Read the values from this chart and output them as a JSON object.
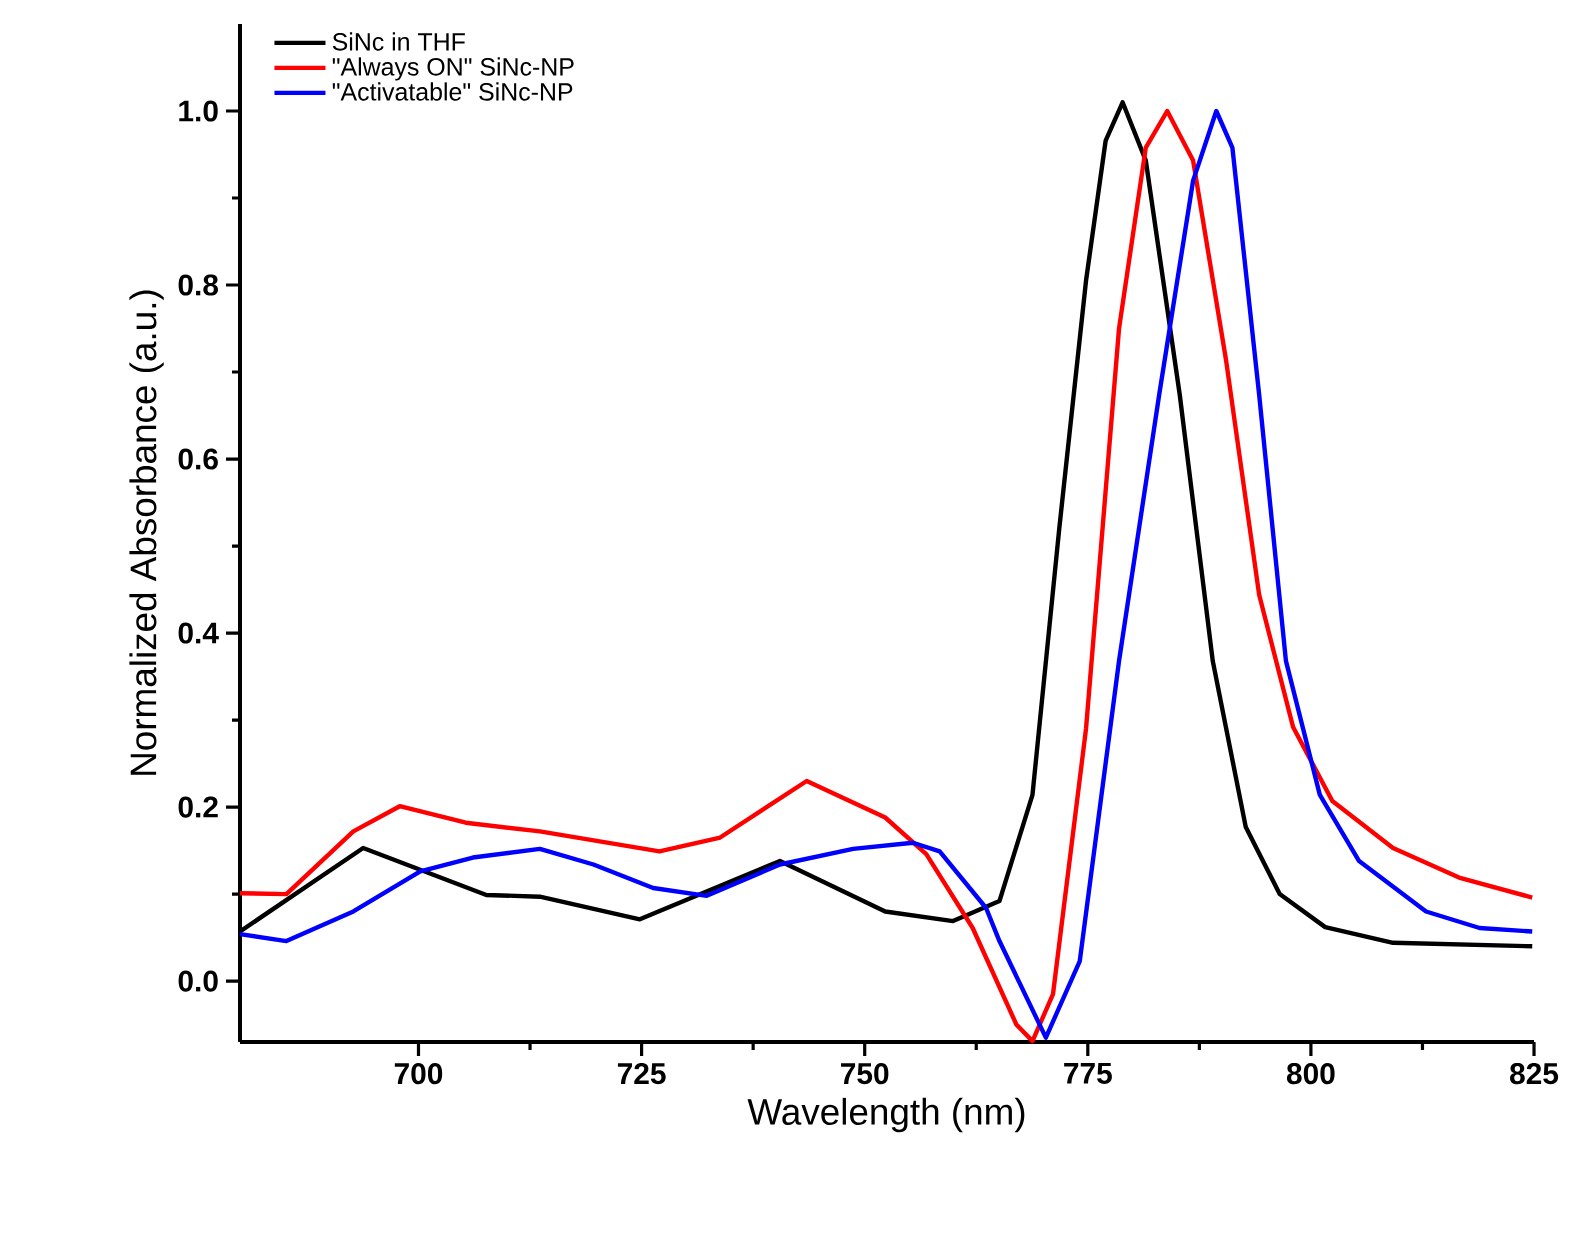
{
  "chart_data": {
    "type": "line",
    "xlabel": "Wavelength (nm)",
    "ylabel": "Normalized Absorbance (a.u.)",
    "xlim": [
      680,
      825
    ],
    "ylim": [
      -0.07,
      1.1
    ],
    "xticks": [
      700,
      725,
      750,
      775,
      800,
      825
    ],
    "yticks": [
      {
        "value": 0,
        "label": "0.0"
      },
      {
        "value": 0.2,
        "label": "0.2"
      },
      {
        "value": 0.4,
        "label": "0.4"
      },
      {
        "value": 0.6,
        "label": "0.6"
      },
      {
        "value": 0.8,
        "label": "0.8"
      },
      {
        "value": 1.0,
        "label": "1.0"
      }
    ],
    "legend": "top left",
    "grid": false,
    "series": [
      {
        "name": "SiNc in THF",
        "color": "#000000",
        "x": [
          680,
          693.8,
          707.6,
          713.6,
          724.8,
          740.5,
          752.3,
          759.9,
          765.1,
          768.8,
          771.8,
          774.8,
          777.0,
          778.9,
          781.5,
          785.3,
          789.0,
          792.7,
          796.5,
          801.6,
          809.2,
          824.8
        ],
        "values": [
          0.057,
          0.153,
          0.099,
          0.097,
          0.071,
          0.138,
          0.08,
          0.069,
          0.092,
          0.214,
          0.52,
          0.805,
          0.966,
          1.01,
          0.943,
          0.674,
          0.368,
          0.177,
          0.1,
          0.062,
          0.044,
          0.04
        ]
      },
      {
        "name": "\"Always ON\" SiNc-NP",
        "color": "#ff0000",
        "x": [
          680,
          685.2,
          692.7,
          697.9,
          705.3,
          713.6,
          727.0,
          733.8,
          743.5,
          752.3,
          756.9,
          762.1,
          767.0,
          768.8,
          771.1,
          774.8,
          778.5,
          781.5,
          783.9,
          786.8,
          790.5,
          794.2,
          798.0,
          802.4,
          809.2,
          816.6,
          824.8
        ],
        "values": [
          0.101,
          0.1,
          0.172,
          0.201,
          0.182,
          0.172,
          0.149,
          0.165,
          0.23,
          0.188,
          0.146,
          0.061,
          -0.05,
          -0.069,
          -0.015,
          0.29,
          0.75,
          0.958,
          1.0,
          0.943,
          0.713,
          0.444,
          0.292,
          0.207,
          0.153,
          0.119,
          0.096
        ]
      },
      {
        "name": "\"Activatable\" SiNc-NP",
        "color": "#0000ff",
        "x": [
          680,
          685.2,
          692.7,
          700.2,
          706.1,
          713.6,
          719.6,
          726.3,
          732.3,
          740.5,
          748.7,
          755.4,
          758.4,
          763.6,
          765.1,
          770.3,
          774.1,
          778.5,
          783.0,
          786.8,
          789.4,
          791.2,
          794.2,
          797.2,
          801.0,
          805.4,
          812.9,
          818.9,
          824.8
        ],
        "values": [
          0.054,
          0.046,
          0.08,
          0.126,
          0.142,
          0.152,
          0.134,
          0.107,
          0.098,
          0.134,
          0.152,
          0.159,
          0.149,
          0.084,
          0.046,
          -0.065,
          0.023,
          0.368,
          0.674,
          0.92,
          1.0,
          0.958,
          0.674,
          0.368,
          0.214,
          0.138,
          0.08,
          0.061,
          0.057
        ]
      }
    ]
  }
}
